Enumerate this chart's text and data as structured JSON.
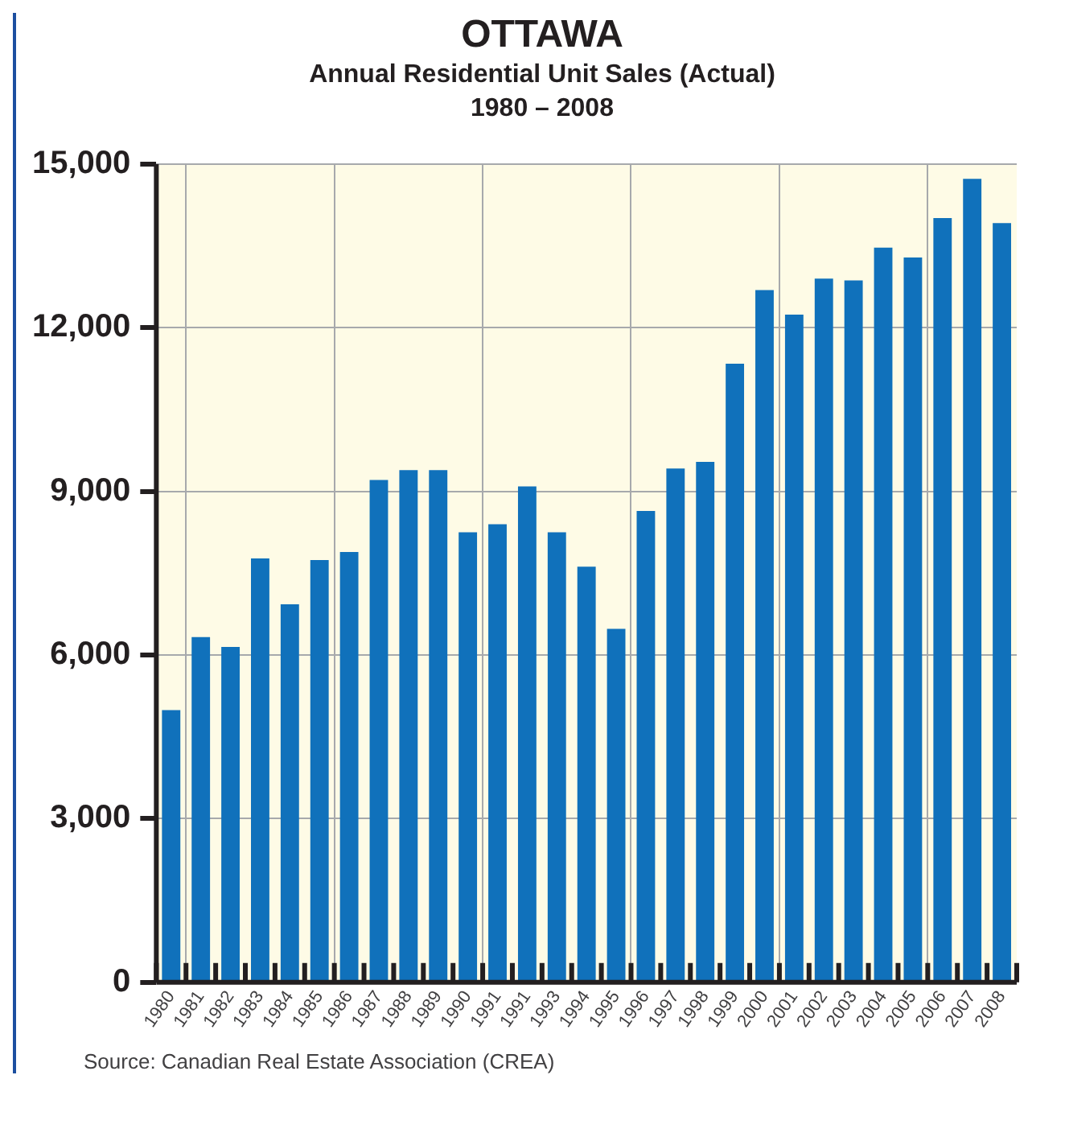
{
  "chart_data": {
    "type": "bar",
    "title": "OTTAWA",
    "subtitle": "Annual Residential Unit Sales (Actual)\n1980 – 2008",
    "categories": [
      "1980",
      "1981",
      "1982",
      "1983",
      "1984",
      "1985",
      "1986",
      "1987",
      "1988",
      "1989",
      "1990",
      "1991",
      "1991",
      "1993",
      "1994",
      "1995",
      "1996",
      "1997",
      "1998",
      "1999",
      "2000",
      "2001",
      "2002",
      "2003",
      "2004",
      "2005",
      "2006",
      "2007",
      "2008"
    ],
    "values": [
      4990,
      6330,
      6150,
      7770,
      6930,
      7740,
      7890,
      9210,
      9390,
      9390,
      8250,
      8400,
      9090,
      8250,
      7620,
      6480,
      8640,
      9420,
      9540,
      11340,
      12690,
      12240,
      12900,
      12870,
      13470,
      13290,
      14010,
      14730,
      13920
    ],
    "color": "#1071bb",
    "ylim": [
      0,
      15000
    ],
    "yticks": [
      {
        "value": 0,
        "label": "0"
      },
      {
        "value": 3000,
        "label": "3,000"
      },
      {
        "value": 6000,
        "label": "6,000"
      },
      {
        "value": 9000,
        "label": "9,000"
      },
      {
        "value": 12000,
        "label": "12,000"
      },
      {
        "value": 15000,
        "label": "15,000"
      }
    ],
    "grid": true,
    "legend": false,
    "annotations": [
      "Source: Canadian Real Estate Association (CREA)"
    ]
  }
}
